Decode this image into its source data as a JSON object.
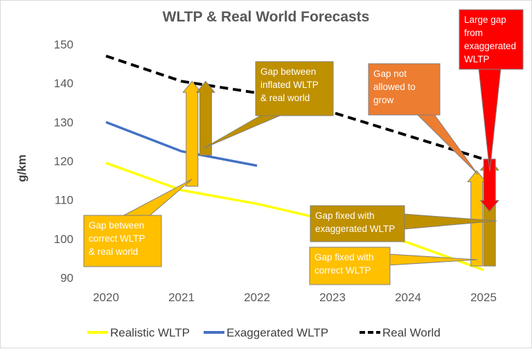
{
  "chart_data": {
    "type": "line",
    "title": "WLTP & Real World Forecasts",
    "ylabel": "g/km",
    "xlabel": "",
    "categories": [
      "2020",
      "2021",
      "2022",
      "2023",
      "2024",
      "2025"
    ],
    "yticks": [
      "150",
      "140",
      "130",
      "120",
      "110",
      "100",
      "90"
    ],
    "ylim": [
      90,
      150
    ],
    "grid": false,
    "legend_position": "bottom",
    "series": [
      {
        "name": "Realistic WLTP",
        "color": "#ffff00",
        "style": "solid",
        "x": [
          2020,
          2021,
          2022,
          2023,
          2024,
          2025
        ],
        "values": [
          119.5,
          112.5,
          109,
          104.5,
          99,
          92
        ]
      },
      {
        "name": "Exaggerated WLTP",
        "color": "#4472c4",
        "style": "solid",
        "x": [
          2020,
          2021,
          2022
        ],
        "values": [
          130,
          122.5,
          118.8
        ]
      },
      {
        "name": "Real World",
        "color": "#000000",
        "style": "dashed",
        "x": [
          2020,
          2021,
          2022,
          2023,
          2024,
          2025
        ],
        "values": [
          147,
          140.5,
          137.5,
          132.5,
          126.5,
          120.5
        ]
      }
    ],
    "arrows": [
      {
        "x": 2021.14,
        "from": 113.5,
        "to": 140.5,
        "color": "#ffc000",
        "direction": "up"
      },
      {
        "x": 2021.32,
        "from": 121.5,
        "to": 140.5,
        "color": "#bf9000",
        "direction": "up"
      },
      {
        "x": 2024.91,
        "from": 93,
        "to": 117.5,
        "color": "#ffc000",
        "direction": "up"
      },
      {
        "x": 2025.08,
        "from": 93,
        "to": 120.5,
        "color": "#bf9000",
        "direction": "up"
      },
      {
        "x": 2025.08,
        "from": 120.5,
        "to": 107,
        "color": "#ff0000",
        "direction": "down"
      }
    ],
    "annotations": [
      {
        "text": [
          "Gap between",
          "inflated WLTP",
          "& real world"
        ],
        "color": "#bf9000"
      },
      {
        "text": [
          "Gap between",
          "correct WLTP",
          "& real world"
        ],
        "color": "#ffc000"
      },
      {
        "text": [
          "Gap not",
          "allowed to",
          "grow"
        ],
        "color": "#ed7d31"
      },
      {
        "text": [
          "Large gap",
          "from",
          "exaggerated",
          "WLTP"
        ],
        "color": "#ff0000"
      },
      {
        "text": [
          "Gap fixed with",
          "exaggerated WLTP"
        ],
        "color": "#bf9000"
      },
      {
        "text": [
          "Gap fixed with",
          "correct WLTP"
        ],
        "color": "#ffc000"
      }
    ]
  }
}
